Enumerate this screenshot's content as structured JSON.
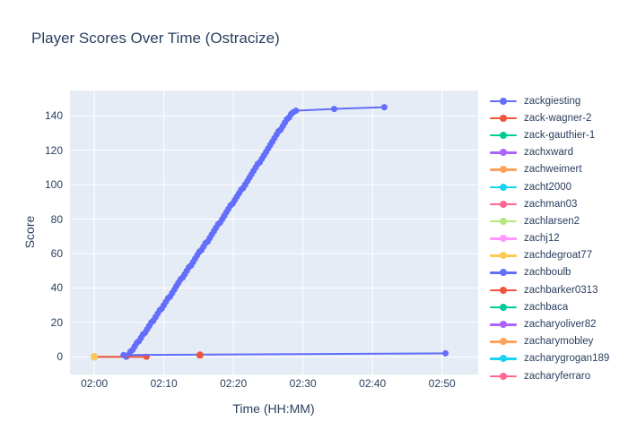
{
  "figure": {
    "title": "Player Scores Over Time (Ostracize)"
  },
  "chart_data": {
    "type": "line",
    "title": "Player Scores Over Time (Ostracize)",
    "xlabel": "Time (HH:MM)",
    "ylabel": "Score",
    "plot_bg": "#E5ECF6",
    "grid_color": "#FFFFFF",
    "text_color": "#2a3f5f",
    "legend_position": "right",
    "x_axis": {
      "tick_labels": [
        "02:00",
        "02:10",
        "02:20",
        "02:30",
        "02:40",
        "02:50"
      ],
      "tick_minutes": [
        0,
        10,
        20,
        30,
        40,
        50
      ],
      "range_minutes": [
        -3.5,
        55.2
      ],
      "grid": true
    },
    "y_axis": {
      "tick_labels": [
        "0",
        "20",
        "40",
        "60",
        "80",
        "100",
        "120",
        "140"
      ],
      "tick_values": [
        0,
        20,
        40,
        60,
        80,
        100,
        120,
        140
      ],
      "range": [
        -10.3,
        154.7
      ],
      "grid": true
    },
    "series": [
      {
        "name": "zackgiesting",
        "color": "#636EFA",
        "points": [
          [
            4.6,
            0
          ],
          [
            4.9,
            1
          ],
          [
            5.2,
            3
          ],
          [
            5.5,
            4
          ],
          [
            5.8,
            6
          ],
          [
            6.1,
            8
          ],
          [
            6.4,
            9
          ],
          [
            6.7,
            11
          ],
          [
            7.0,
            13
          ],
          [
            7.3,
            14
          ],
          [
            7.6,
            16
          ],
          [
            7.9,
            18
          ],
          [
            8.2,
            20
          ],
          [
            8.5,
            21
          ],
          [
            8.8,
            23
          ],
          [
            9.1,
            25
          ],
          [
            9.4,
            27
          ],
          [
            9.7,
            28
          ],
          [
            10.0,
            30
          ],
          [
            10.3,
            32
          ],
          [
            10.6,
            34
          ],
          [
            10.9,
            35
          ],
          [
            11.2,
            37
          ],
          [
            11.5,
            39
          ],
          [
            11.8,
            41
          ],
          [
            12.1,
            43
          ],
          [
            12.4,
            45
          ],
          [
            12.7,
            46
          ],
          [
            13.0,
            48
          ],
          [
            13.3,
            50
          ],
          [
            13.6,
            52
          ],
          [
            13.9,
            53
          ],
          [
            14.2,
            55
          ],
          [
            14.5,
            57
          ],
          [
            14.8,
            59
          ],
          [
            15.1,
            61
          ],
          [
            15.4,
            62
          ],
          [
            15.7,
            64
          ],
          [
            16.0,
            66
          ],
          [
            16.3,
            67
          ],
          [
            16.6,
            69
          ],
          [
            16.9,
            71
          ],
          [
            17.2,
            73
          ],
          [
            17.5,
            75
          ],
          [
            17.8,
            77
          ],
          [
            18.1,
            78
          ],
          [
            18.4,
            80
          ],
          [
            18.7,
            82
          ],
          [
            19.0,
            84
          ],
          [
            19.3,
            86
          ],
          [
            19.6,
            88
          ],
          [
            19.9,
            89
          ],
          [
            20.2,
            91
          ],
          [
            20.5,
            93
          ],
          [
            20.8,
            95
          ],
          [
            21.1,
            97
          ],
          [
            21.4,
            98
          ],
          [
            21.7,
            100
          ],
          [
            22.0,
            102
          ],
          [
            22.3,
            104
          ],
          [
            22.6,
            106
          ],
          [
            22.9,
            108
          ],
          [
            23.2,
            110
          ],
          [
            23.5,
            112
          ],
          [
            23.8,
            113
          ],
          [
            24.1,
            115
          ],
          [
            24.4,
            117
          ],
          [
            24.7,
            119
          ],
          [
            25.0,
            121
          ],
          [
            25.3,
            123
          ],
          [
            25.6,
            125
          ],
          [
            25.9,
            127
          ],
          [
            26.2,
            129
          ],
          [
            26.5,
            131
          ],
          [
            26.8,
            132
          ],
          [
            27.1,
            134
          ],
          [
            27.4,
            136
          ],
          [
            27.7,
            138
          ],
          [
            28.0,
            139
          ],
          [
            28.3,
            141
          ],
          [
            28.6,
            142
          ],
          [
            29.0,
            143
          ],
          [
            34.5,
            144
          ],
          [
            41.7,
            145
          ]
        ]
      },
      {
        "name": "zack-wagner-2",
        "color": "#EF553B",
        "points": [
          [
            0,
            0
          ],
          [
            7.5,
            0
          ]
        ]
      },
      {
        "name": "zack-gauthier-1",
        "color": "#00CC96",
        "points": [
          [
            0,
            0
          ]
        ]
      },
      {
        "name": "zachxward",
        "color": "#AB63FA",
        "points": [
          [
            0,
            0
          ]
        ]
      },
      {
        "name": "zachweimert",
        "color": "#FFA15A",
        "points": [
          [
            0,
            0
          ]
        ]
      },
      {
        "name": "zacht2000",
        "color": "#19D3F3",
        "points": [
          [
            0,
            0
          ]
        ]
      },
      {
        "name": "zachman03",
        "color": "#FF6692",
        "points": [
          [
            0,
            0
          ]
        ]
      },
      {
        "name": "zachlarsen2",
        "color": "#B6E880",
        "points": [
          [
            0,
            0
          ]
        ]
      },
      {
        "name": "zachj12",
        "color": "#FF97FF",
        "points": [
          [
            0,
            0
          ]
        ]
      },
      {
        "name": "zachdegroat77",
        "color": "#FECB52",
        "points": [
          [
            0,
            0
          ]
        ]
      },
      {
        "name": "zachboulb",
        "color": "#636EFA",
        "points": [
          [
            4.2,
            1
          ],
          [
            50.5,
            2
          ]
        ]
      },
      {
        "name": "zachbarker0313",
        "color": "#EF553B",
        "points": [
          [
            15.2,
            1
          ]
        ]
      },
      {
        "name": "zachbaca",
        "color": "#00CC96",
        "points": []
      },
      {
        "name": "zacharyoliver82",
        "color": "#AB63FA",
        "points": []
      },
      {
        "name": "zacharymobley",
        "color": "#FFA15A",
        "points": []
      },
      {
        "name": "zacharygrogan189",
        "color": "#19D3F3",
        "points": []
      },
      {
        "name": "zacharyferraro",
        "color": "#FF6692",
        "points": []
      }
    ]
  }
}
